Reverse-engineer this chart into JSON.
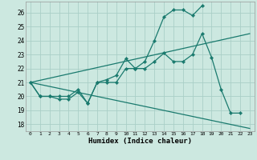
{
  "xlabel": "Humidex (Indice chaleur)",
  "bg_color": "#cce8e0",
  "grid_color": "#aacfc7",
  "line_color": "#1a7a6e",
  "xlim": [
    -0.5,
    23.5
  ],
  "ylim": [
    17.5,
    26.8
  ],
  "xticks": [
    0,
    1,
    2,
    3,
    4,
    5,
    6,
    7,
    8,
    9,
    10,
    11,
    12,
    13,
    14,
    15,
    16,
    17,
    18,
    19,
    20,
    21,
    22,
    23
  ],
  "yticks": [
    18,
    19,
    20,
    21,
    22,
    23,
    24,
    25,
    26
  ],
  "series": [
    {
      "x": [
        0,
        1,
        2,
        3,
        4,
        5,
        6,
        7,
        8,
        9,
        10,
        11,
        12,
        13,
        14,
        15,
        16,
        17,
        18
      ],
      "y": [
        21,
        20,
        20,
        20,
        20,
        20.5,
        19.5,
        21,
        21,
        21,
        22,
        22,
        22.5,
        24,
        25.7,
        26.2,
        26.2,
        25.8,
        26.5
      ],
      "marker": true
    },
    {
      "x": [
        0,
        1,
        2,
        3,
        4,
        5,
        6,
        7,
        8,
        9,
        10,
        11,
        12,
        13,
        14,
        15,
        16,
        17,
        18,
        19,
        20,
        21,
        22
      ],
      "y": [
        21,
        20,
        20,
        19.8,
        19.8,
        20.3,
        19.5,
        21.0,
        21.2,
        21.5,
        22.7,
        22.0,
        22.0,
        22.5,
        23.1,
        22.5,
        22.5,
        23.0,
        24.5,
        22.8,
        20.5,
        18.8,
        18.8
      ],
      "marker": true
    },
    {
      "x": [
        0,
        23
      ],
      "y": [
        21,
        24.5
      ],
      "marker": false
    },
    {
      "x": [
        0,
        23
      ],
      "y": [
        21,
        17.7
      ],
      "marker": false
    }
  ]
}
